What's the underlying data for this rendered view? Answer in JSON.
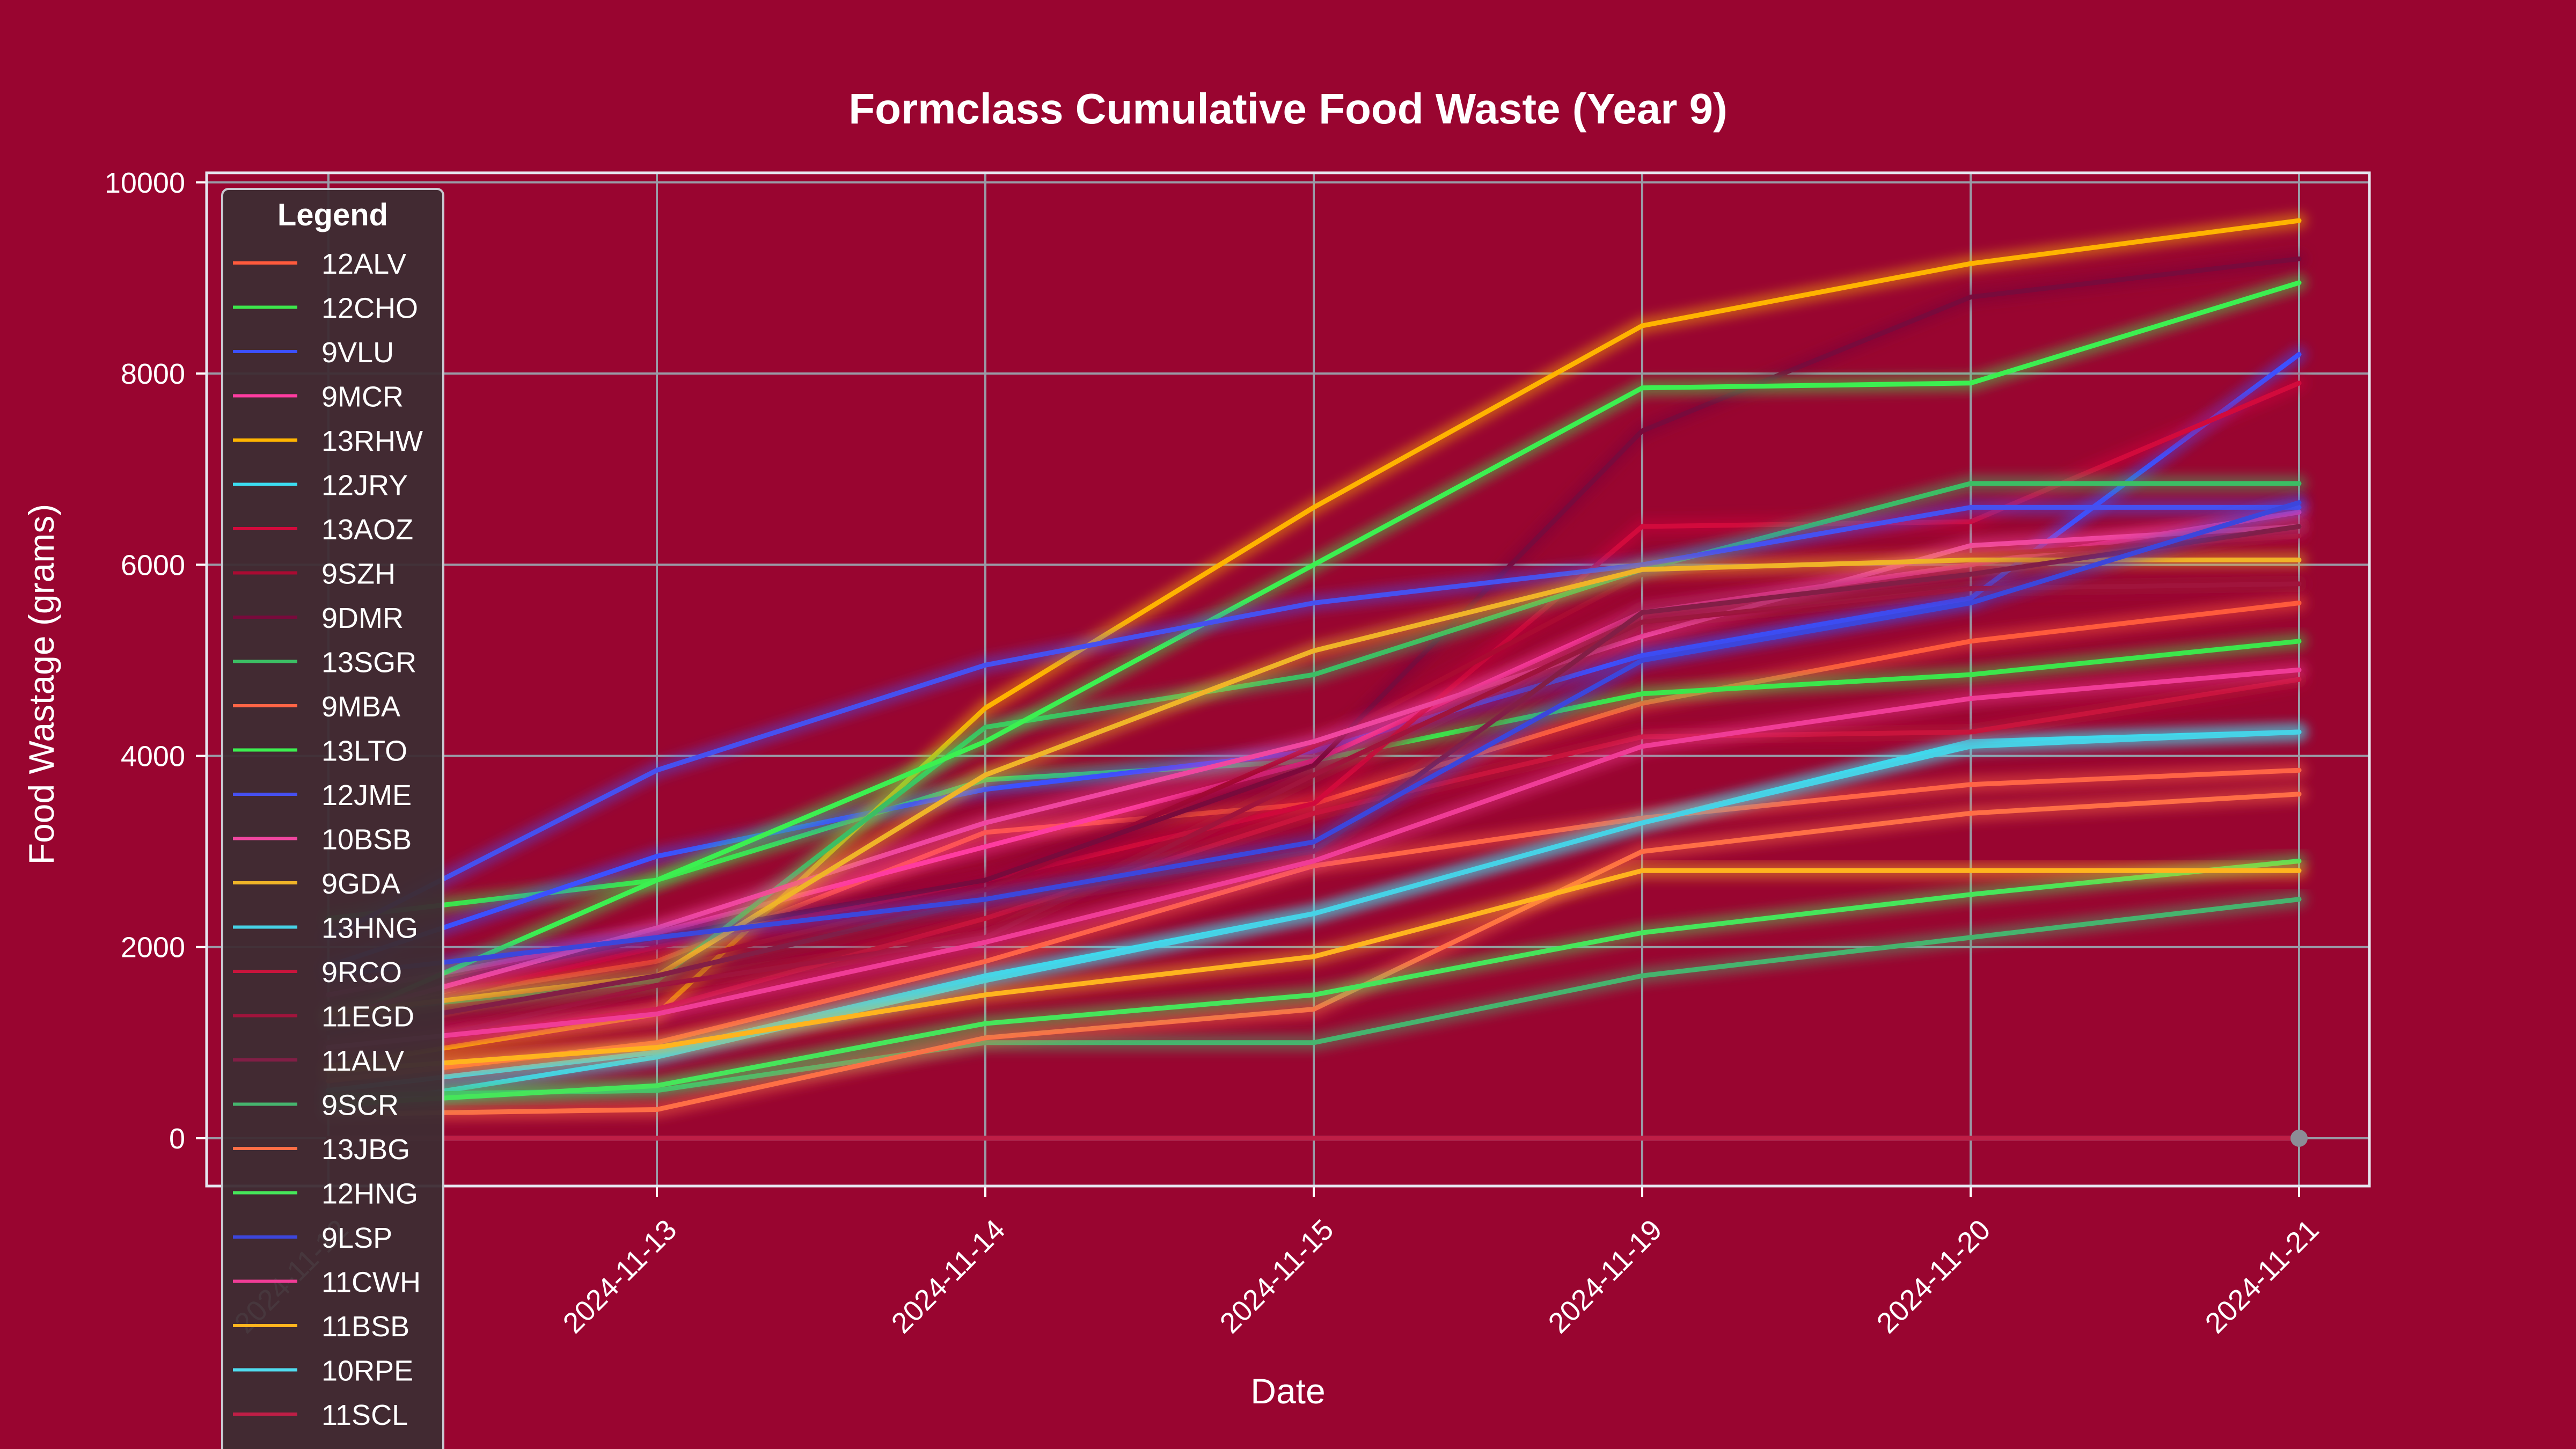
{
  "chart_data": {
    "type": "line",
    "title": "Formclass Cumulative Food Waste  (Year 9)",
    "xlabel": "Date",
    "ylabel": "Food Wastage (grams)",
    "x": [
      "2024-11-12",
      "2024-11-13",
      "2024-11-14",
      "2024-11-15",
      "2024-11-19",
      "2024-11-20",
      "2024-11-21"
    ],
    "x_tick_labels": [
      "2024-11-12",
      "2024-11-13",
      "2024-11-14",
      "2024-11-15",
      "2024-11-19",
      "2024-11-20",
      "2024-11-21"
    ],
    "ylim": [
      -500,
      10100
    ],
    "y_ticks": [
      0,
      2000,
      4000,
      6000,
      8000,
      10000
    ],
    "grid": true,
    "legend_title": "Legend",
    "legend_position": "upper-left",
    "series": [
      {
        "name": "12ALV",
        "color": "#ff5a3c",
        "values": [
          1300,
          1850,
          3200,
          3500,
          4550,
          5200,
          5600
        ]
      },
      {
        "name": "12CHO",
        "color": "#3ce64b",
        "values": [
          2300,
          2700,
          3750,
          3950,
          4650,
          4850,
          5200
        ]
      },
      {
        "name": "9VLU",
        "color": "#3c50ff",
        "values": [
          1800,
          2950,
          3650,
          4050,
          5050,
          5650,
          8200
        ]
      },
      {
        "name": "9MCR",
        "color": "#ff3ca0",
        "values": [
          1500,
          2150,
          3050,
          3950,
          5500,
          6000,
          6550
        ]
      },
      {
        "name": "13RHW",
        "color": "#ffb400",
        "values": [
          750,
          1300,
          4500,
          6600,
          8500,
          9150,
          9600
        ]
      },
      {
        "name": "12JRY",
        "color": "#3cdcf0",
        "values": [
          500,
          900,
          1700,
          2350,
          3300,
          4150,
          4250
        ]
      },
      {
        "name": "13AOZ",
        "color": "#d20a3c",
        "values": [
          1200,
          2000,
          2700,
          3500,
          6400,
          6450,
          7900
        ]
      },
      {
        "name": "9SZH",
        "color": "#aa0a32",
        "values": [
          1000,
          1800,
          2600,
          4100,
          5900,
          6100,
          6300
        ]
      },
      {
        "name": "9DMR",
        "color": "#780a3c",
        "values": [
          1400,
          2100,
          2700,
          3900,
          7400,
          8800,
          9200
        ]
      },
      {
        "name": "13SGR",
        "color": "#3cbe64",
        "values": [
          1300,
          1650,
          4300,
          4850,
          5950,
          6850,
          6850
        ]
      },
      {
        "name": "9MBA",
        "color": "#ff6446",
        "values": [
          600,
          1000,
          1850,
          2850,
          3350,
          3700,
          3850
        ]
      },
      {
        "name": "13LTO",
        "color": "#3cf050",
        "values": [
          1200,
          2700,
          4150,
          6000,
          7850,
          7900,
          8950
        ]
      },
      {
        "name": "12JME",
        "color": "#4650f0",
        "values": [
          2100,
          3850,
          4950,
          5600,
          6000,
          6600,
          6600
        ]
      },
      {
        "name": "10BSB",
        "color": "#f046a0",
        "values": [
          1250,
          2200,
          3300,
          4150,
          5250,
          6200,
          6400
        ]
      },
      {
        "name": "9GDA",
        "color": "#f0b428",
        "values": [
          1300,
          1700,
          3800,
          5100,
          5950,
          6050,
          6050
        ]
      },
      {
        "name": "13HNG",
        "color": "#46d2e6",
        "values": [
          300,
          850,
          1650,
          2350,
          3300,
          4100,
          4250
        ]
      },
      {
        "name": "9RCO",
        "color": "#c8143c",
        "values": [
          900,
          1350,
          2300,
          3400,
          4200,
          4250,
          4800
        ]
      },
      {
        "name": "11EGD",
        "color": "#a0143c",
        "values": [
          800,
          1600,
          2100,
          3800,
          5400,
          5750,
          5800
        ]
      },
      {
        "name": "11ALV",
        "color": "#821e46",
        "values": [
          1100,
          1700,
          2500,
          3000,
          5500,
          5900,
          6400
        ]
      },
      {
        "name": "9SCR",
        "color": "#46b46e",
        "values": [
          450,
          500,
          1000,
          1000,
          1700,
          2100,
          2500
        ]
      },
      {
        "name": "13JBG",
        "color": "#ff6e46",
        "values": [
          250,
          300,
          1050,
          1350,
          3000,
          3400,
          3600
        ]
      },
      {
        "name": "12HNG",
        "color": "#46e65a",
        "values": [
          350,
          550,
          1200,
          1500,
          2150,
          2550,
          2900
        ]
      },
      {
        "name": "9LSP",
        "color": "#3c46dc",
        "values": [
          1700,
          2100,
          2500,
          3100,
          5000,
          5600,
          6650
        ]
      },
      {
        "name": "11CWH",
        "color": "#f03c96",
        "values": [
          950,
          1300,
          2050,
          2900,
          4100,
          4600,
          4900
        ]
      },
      {
        "name": "11BSB",
        "color": "#ffb41e",
        "values": [
          700,
          950,
          1500,
          1900,
          2800,
          2800,
          2800
        ]
      },
      {
        "name": "10RPE",
        "color": "#50dcf0",
        "values": [
          0,
          0,
          0,
          0,
          0,
          0,
          0
        ]
      },
      {
        "name": "11SCL",
        "color": "#be1e46",
        "values": [
          0,
          0,
          0,
          0,
          0,
          0,
          0
        ]
      }
    ],
    "zero_series_colors": [
      "#ffb400",
      "#ff5a3c",
      "#3cbe64"
    ]
  }
}
